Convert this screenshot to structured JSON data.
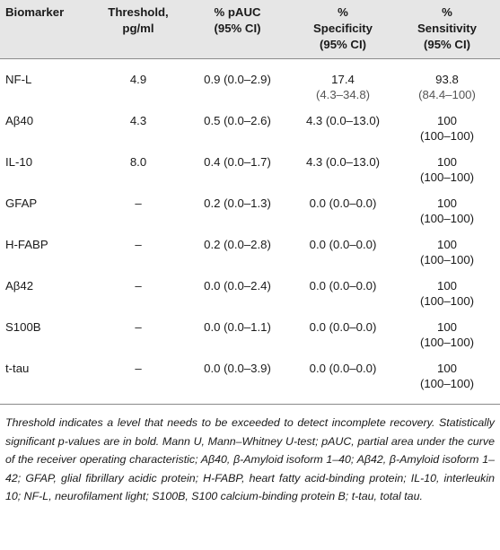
{
  "table": {
    "headers": [
      "Biomarker",
      "Threshold, pg/ml",
      "% pAUC (95% CI)",
      "% Specificity (95% CI)",
      "% Sensitivity (95% CI)"
    ],
    "header_lines": {
      "c1": [
        "Biomarker"
      ],
      "c2": [
        "Threshold,",
        "pg/ml"
      ],
      "c3": [
        "% pAUC",
        "(95% CI)"
      ],
      "c4": [
        "%",
        "Specificity",
        "(95% CI)"
      ],
      "c5": [
        "%",
        "Sensitivity",
        "(95% CI)"
      ]
    },
    "rows": [
      {
        "biomarker": "NF-L",
        "threshold": "4.9",
        "pauc": "0.9 (0.0–2.9)",
        "spec_a": "17.4",
        "spec_b": "(4.3–34.8)",
        "sens_a": "93.8",
        "sens_b": "(84.4–100)"
      },
      {
        "biomarker": "Aβ40",
        "threshold": "4.3",
        "pauc": "0.5 (0.0–2.6)",
        "spec_a": "4.3 (0.0–13.0)",
        "spec_b": "",
        "sens_a": "100",
        "sens_b": "(100–100)"
      },
      {
        "biomarker": "IL-10",
        "threshold": "8.0",
        "pauc": "0.4 (0.0–1.7)",
        "spec_a": "4.3 (0.0–13.0)",
        "spec_b": "",
        "sens_a": "100",
        "sens_b": "(100–100)"
      },
      {
        "biomarker": "GFAP",
        "threshold": "–",
        "pauc": "0.2 (0.0–1.3)",
        "spec_a": "0.0 (0.0–0.0)",
        "spec_b": "",
        "sens_a": "100",
        "sens_b": "(100–100)"
      },
      {
        "biomarker": "H-FABP",
        "threshold": "–",
        "pauc": "0.2 (0.0–2.8)",
        "spec_a": "0.0 (0.0–0.0)",
        "spec_b": "",
        "sens_a": "100",
        "sens_b": "(100–100)"
      },
      {
        "biomarker": "Aβ42",
        "threshold": "–",
        "pauc": "0.0 (0.0–2.4)",
        "spec_a": "0.0 (0.0–0.0)",
        "spec_b": "",
        "sens_a": "100",
        "sens_b": "(100–100)"
      },
      {
        "biomarker": "S100B",
        "threshold": "–",
        "pauc": "0.0 (0.0–1.1)",
        "spec_a": "0.0 (0.0–0.0)",
        "spec_b": "",
        "sens_a": "100",
        "sens_b": "(100–100)"
      },
      {
        "biomarker": "t-tau",
        "threshold": "–",
        "pauc": "0.0 (0.0–3.9)",
        "spec_a": "0.0 (0.0–0.0)",
        "spec_b": "",
        "sens_a": "100",
        "sens_b": "(100–100)"
      }
    ]
  },
  "footnote": "Threshold indicates a level that needs to be exceeded to detect incomplete recovery. Statistically significant p-values are in bold. Mann U, Mann–Whitney U-test; pAUC, partial area under the curve of the receiver operating characteristic; Aβ40, β-Amyloid isoform 1–40; Aβ42, β-Amyloid isoform 1–42; GFAP, glial fibrillary acidic protein; H-FABP, heart fatty acid-binding protein; IL-10, interleukin 10; NF-L, neurofilament light; S100B, S100 calcium-binding protein B; t-tau, total tau."
}
